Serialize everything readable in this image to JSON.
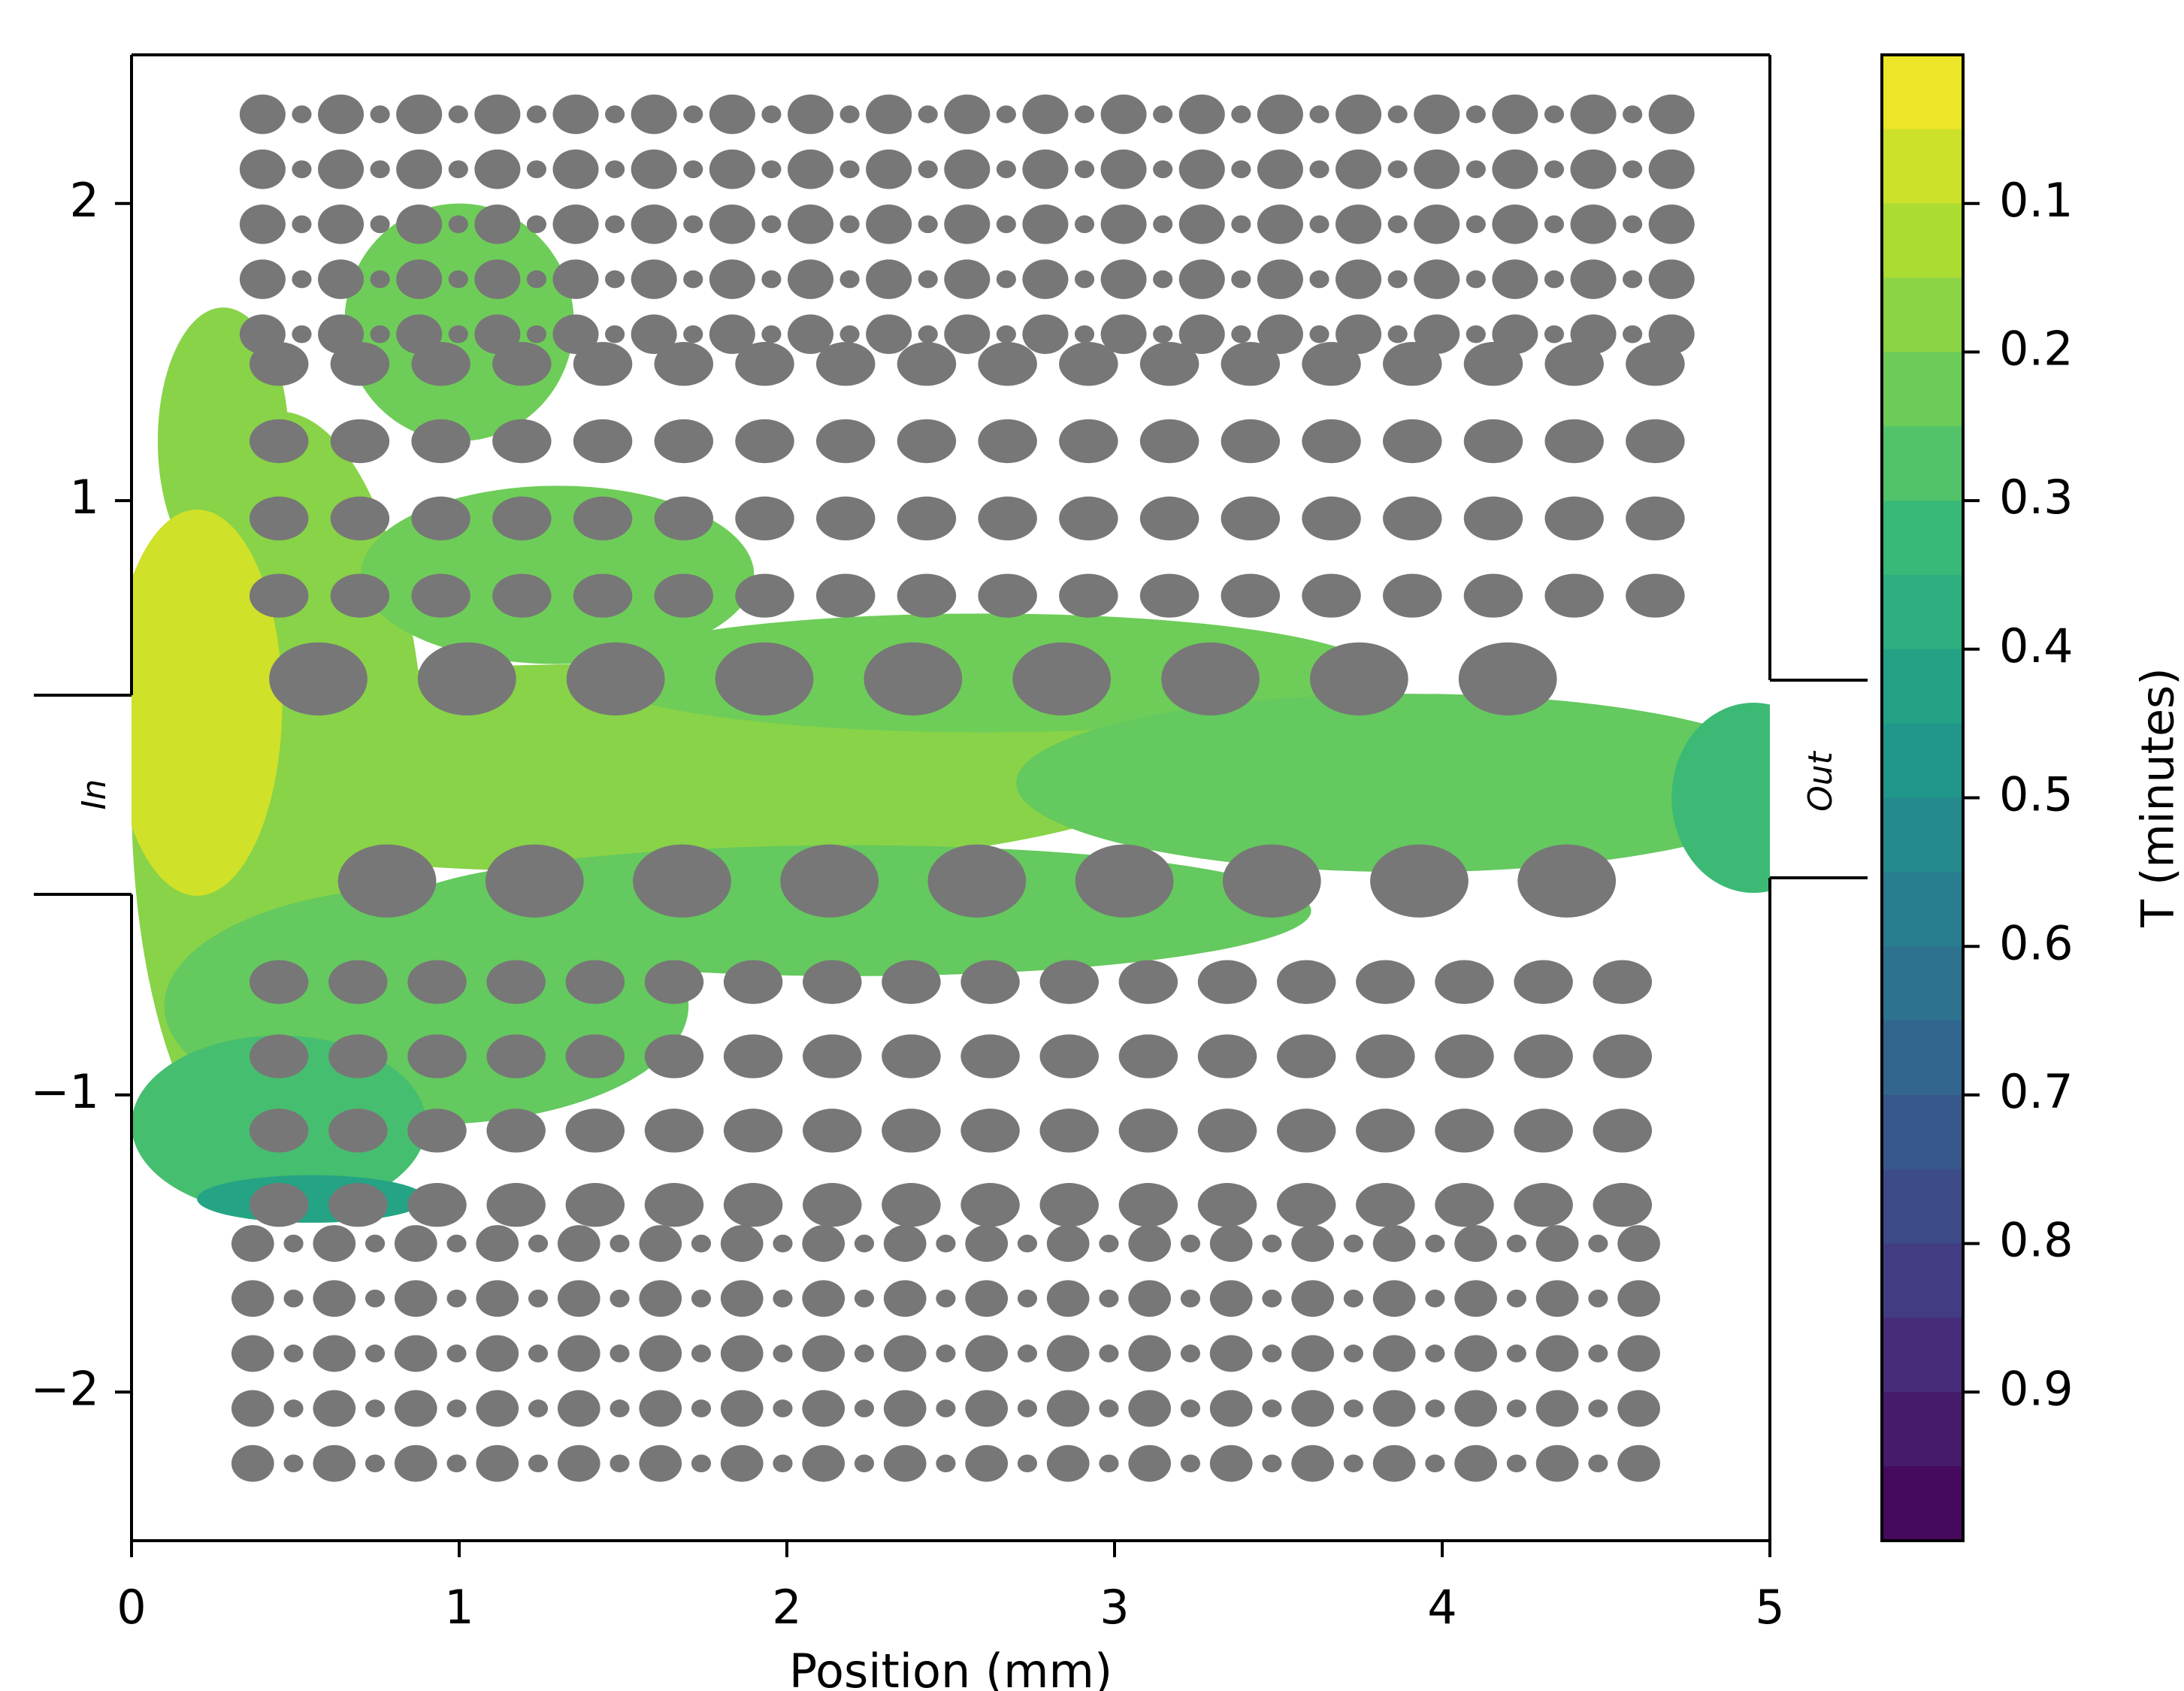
{
  "chart_data": {
    "type": "heatmap",
    "title": "",
    "xlabel": "Position (mm)",
    "ylabel": "",
    "xlim": [
      0,
      5
    ],
    "ylim": [
      -2.5,
      2.5
    ],
    "x_ticks": [
      0,
      1,
      2,
      3,
      4,
      5
    ],
    "x_tick_labels": [
      "0",
      "1",
      "2",
      "3",
      "4",
      "5"
    ],
    "y_ticks": [
      2,
      1,
      -1,
      -2
    ],
    "y_tick_labels": [
      "2",
      "1",
      "−1",
      "−2"
    ],
    "grid": false,
    "inlet_label": "In",
    "outlet_label": "Out",
    "channel_half_width_mm": 0.33,
    "colorbar": {
      "label": "T (minutes)",
      "range": [
        0,
        1
      ],
      "reversed": true,
      "ticks": [
        0.1,
        0.2,
        0.3,
        0.4,
        0.5,
        0.6,
        0.7,
        0.8,
        0.9
      ],
      "tick_labels": [
        "0.1",
        "0.2",
        "0.3",
        "0.4",
        "0.5",
        "0.6",
        "0.7",
        "0.8",
        "0.9"
      ],
      "levels": 20,
      "colormap": "viridis"
    },
    "pillar_color": "#777777",
    "pillar_rows": [
      {
        "name": "top-small-array",
        "y_start": 2.3,
        "y_step": -0.185,
        "rows": 5,
        "x_start": 0.4,
        "x_end": 4.7,
        "large_count": 19,
        "large_r": 0.07,
        "small_r": 0.03
      },
      {
        "name": "upper-medium-array",
        "y_start": 1.46,
        "y_step": -0.26,
        "rows": 4,
        "x_start": 0.45,
        "x_end": 4.65,
        "count": 18,
        "r": 0.09
      },
      {
        "name": "center-large-top",
        "y": 0.4,
        "x_start": 0.57,
        "x_end": 4.2,
        "count": 9,
        "r": 0.15
      },
      {
        "name": "center-large-bottom",
        "y": -0.28,
        "x_start": 0.78,
        "x_end": 4.38,
        "count": 9,
        "r": 0.15
      },
      {
        "name": "lower-medium-array",
        "y_start": -0.62,
        "y_step": -0.25,
        "rows": 4,
        "x_start": 0.45,
        "x_end": 4.55,
        "count": 18,
        "r": 0.09
      },
      {
        "name": "bottom-small-array",
        "y_start": -1.5,
        "y_step": -0.185,
        "rows": 5,
        "x_start": 0.37,
        "x_end": 4.6,
        "large_count": 18,
        "large_r": 0.065,
        "small_r": 0.03
      }
    ],
    "flow_regions": [
      {
        "T": 0.18,
        "shape": "ellipse",
        "cx": 1.45,
        "cy": 0.1,
        "rx": 1.75,
        "ry": 0.35
      },
      {
        "T": 0.18,
        "shape": "ellipse",
        "cx": 0.45,
        "cy": 0.0,
        "rx": 0.45,
        "ry": 1.3
      },
      {
        "T": 0.18,
        "shape": "ellipse",
        "cx": 0.28,
        "cy": 1.2,
        "rx": 0.2,
        "ry": 0.45
      },
      {
        "T": 0.22,
        "shape": "ellipse",
        "cx": 1.3,
        "cy": 0.75,
        "rx": 0.6,
        "ry": 0.3
      },
      {
        "T": 0.22,
        "shape": "ellipse",
        "cx": 1.0,
        "cy": 1.6,
        "rx": 0.35,
        "ry": 0.4
      },
      {
        "T": 0.22,
        "shape": "ellipse",
        "cx": 2.6,
        "cy": 0.42,
        "rx": 1.2,
        "ry": 0.2
      },
      {
        "T": 0.24,
        "shape": "ellipse",
        "cx": 3.9,
        "cy": 0.05,
        "rx": 1.2,
        "ry": 0.3
      },
      {
        "T": 0.24,
        "shape": "ellipse",
        "cx": 2.2,
        "cy": -0.38,
        "rx": 1.4,
        "ry": 0.22
      },
      {
        "T": 0.24,
        "shape": "ellipse",
        "cx": 0.9,
        "cy": -0.7,
        "rx": 0.8,
        "ry": 0.4
      },
      {
        "T": 0.3,
        "shape": "ellipse",
        "cx": 0.45,
        "cy": -1.1,
        "rx": 0.45,
        "ry": 0.3
      },
      {
        "T": 0.42,
        "shape": "ellipse",
        "cx": 0.14,
        "cy": 0.35,
        "rx": 0.12,
        "ry": 0.14
      },
      {
        "T": 0.42,
        "shape": "ellipse",
        "cx": 0.55,
        "cy": -1.35,
        "rx": 0.35,
        "ry": 0.08
      },
      {
        "T": 0.07,
        "shape": "ellipse",
        "cx": 0.2,
        "cy": 0.32,
        "rx": 0.26,
        "ry": 0.65
      },
      {
        "T": 0.32,
        "shape": "ellipse",
        "cx": 4.95,
        "cy": 0.0,
        "rx": 0.25,
        "ry": 0.32
      }
    ]
  }
}
